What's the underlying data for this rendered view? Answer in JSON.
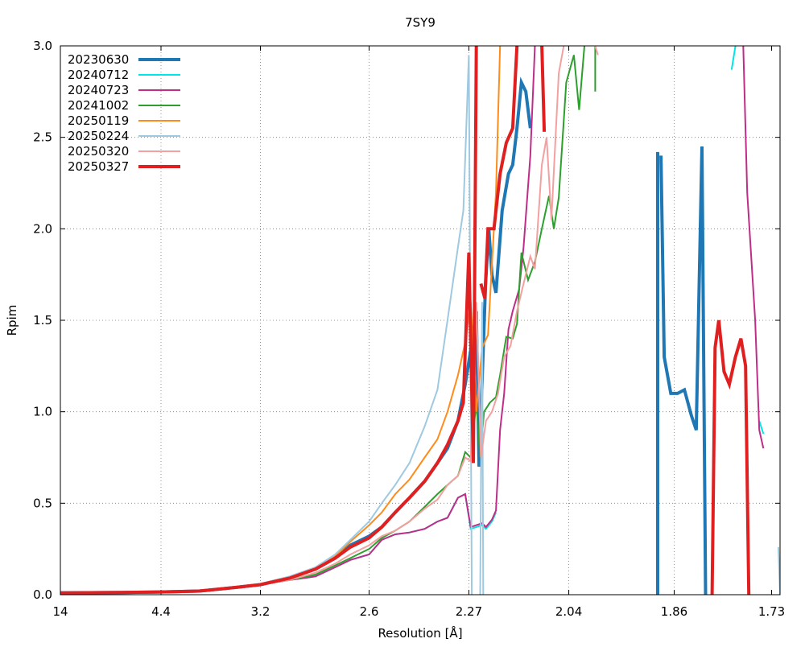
{
  "chart_data": {
    "type": "line",
    "title": "7SY9",
    "xlabel": "Resolution [Å]",
    "ylabel": "Rpim",
    "x_scale": "1/d^2",
    "xlim": [
      14,
      1.72
    ],
    "ylim": [
      0,
      3.0
    ],
    "grid": true,
    "legend_position": "top-left",
    "x_ticks": [
      {
        "value": 14,
        "label": "14"
      },
      {
        "value": 4.4,
        "label": "4.4"
      },
      {
        "value": 3.2,
        "label": "3.2"
      },
      {
        "value": 2.6,
        "label": "2.6"
      },
      {
        "value": 2.27,
        "label": "2.27"
      },
      {
        "value": 2.04,
        "label": "2.04"
      },
      {
        "value": 1.86,
        "label": "1.86"
      },
      {
        "value": 1.73,
        "label": "1.73"
      }
    ],
    "y_ticks": [
      {
        "value": 0,
        "label": "0.0"
      },
      {
        "value": 0.5,
        "label": "0.5"
      },
      {
        "value": 1.0,
        "label": "1.0"
      },
      {
        "value": 1.5,
        "label": "1.5"
      },
      {
        "value": 2.0,
        "label": "2.0"
      },
      {
        "value": 2.5,
        "label": "2.5"
      },
      {
        "value": 3.0,
        "label": "3.0"
      }
    ],
    "series": [
      {
        "name": "20230630",
        "color": "#1f77b4",
        "width": 4,
        "points": [
          [
            14,
            0.01
          ],
          [
            5.5,
            0.012
          ],
          [
            4.4,
            0.015
          ],
          [
            3.8,
            0.02
          ],
          [
            3.4,
            0.04
          ],
          [
            3.2,
            0.055
          ],
          [
            3.0,
            0.09
          ],
          [
            2.85,
            0.14
          ],
          [
            2.75,
            0.2
          ],
          [
            2.68,
            0.27
          ],
          [
            2.6,
            0.32
          ],
          [
            2.55,
            0.37
          ],
          [
            2.5,
            0.45
          ],
          [
            2.45,
            0.53
          ],
          [
            2.4,
            0.62
          ],
          [
            2.36,
            0.72
          ],
          [
            2.33,
            0.8
          ],
          [
            2.3,
            0.95
          ],
          [
            2.28,
            1.15
          ],
          [
            2.26,
            1.4
          ],
          [
            2.25,
            1.55
          ],
          [
            2.243,
            0.7
          ],
          [
            2.235,
            1.17
          ],
          [
            2.226,
            1.7
          ],
          [
            2.218,
            2.0
          ],
          [
            2.21,
            1.75
          ],
          [
            2.2,
            1.65
          ],
          [
            2.185,
            2.1
          ],
          [
            2.17,
            2.3
          ],
          [
            2.16,
            2.35
          ],
          [
            2.15,
            2.55
          ],
          [
            2.14,
            2.8
          ],
          [
            2.13,
            2.75
          ],
          [
            2.12,
            2.55
          ],
          [
            2.12,
            null
          ],
          [
            1.885,
            2.42
          ],
          [
            1.885,
            0.0
          ],
          [
            1.885,
            null
          ],
          [
            1.88,
            2.4
          ],
          [
            1.875,
            1.3
          ],
          [
            1.865,
            1.1
          ],
          [
            1.855,
            1.1
          ],
          [
            1.845,
            1.12
          ],
          [
            1.835,
            0.98
          ],
          [
            1.828,
            0.9
          ],
          [
            1.82,
            2.45
          ],
          [
            1.815,
            0.0
          ]
        ]
      },
      {
        "name": "20240712",
        "color": "#00e5e5",
        "width": 2,
        "points": [
          [
            14,
            0.01
          ],
          [
            5.5,
            0.012
          ],
          [
            4.4,
            0.015
          ],
          [
            3.8,
            0.02
          ],
          [
            3.4,
            0.04
          ],
          [
            3.2,
            0.055
          ],
          [
            3.0,
            0.08
          ],
          [
            2.85,
            0.1
          ],
          [
            2.75,
            0.15
          ],
          [
            2.68,
            0.19
          ],
          [
            2.6,
            0.22
          ],
          [
            2.55,
            0.3
          ],
          [
            2.5,
            0.33
          ],
          [
            2.45,
            0.34
          ],
          [
            2.4,
            0.36
          ],
          [
            2.36,
            0.4
          ],
          [
            2.33,
            0.42
          ],
          [
            2.3,
            0.53
          ],
          [
            2.28,
            0.55
          ],
          [
            2.265,
            0.36
          ],
          [
            2.25,
            0.37
          ],
          [
            2.235,
            0.38
          ],
          [
            2.225,
            0.36
          ],
          [
            2.21,
            0.4
          ],
          [
            2.2,
            0.45
          ],
          [
            2.2,
            null
          ],
          [
            1.78,
            2.87
          ],
          [
            1.775,
            3.0
          ],
          [
            1.775,
            null
          ],
          [
            1.745,
            0.95
          ],
          [
            1.74,
            0.88
          ]
        ]
      },
      {
        "name": "20240723",
        "color": "#c02d88",
        "width": 2,
        "points": [
          [
            14,
            0.01
          ],
          [
            5.5,
            0.012
          ],
          [
            4.4,
            0.015
          ],
          [
            3.8,
            0.02
          ],
          [
            3.4,
            0.04
          ],
          [
            3.2,
            0.055
          ],
          [
            3.0,
            0.08
          ],
          [
            2.85,
            0.1
          ],
          [
            2.75,
            0.15
          ],
          [
            2.68,
            0.19
          ],
          [
            2.6,
            0.22
          ],
          [
            2.55,
            0.3
          ],
          [
            2.5,
            0.33
          ],
          [
            2.45,
            0.34
          ],
          [
            2.4,
            0.36
          ],
          [
            2.36,
            0.4
          ],
          [
            2.33,
            0.42
          ],
          [
            2.3,
            0.53
          ],
          [
            2.28,
            0.55
          ],
          [
            2.265,
            0.37
          ],
          [
            2.25,
            0.38
          ],
          [
            2.235,
            0.39
          ],
          [
            2.225,
            0.37
          ],
          [
            2.21,
            0.41
          ],
          [
            2.2,
            0.46
          ],
          [
            2.19,
            0.9
          ],
          [
            2.18,
            1.1
          ],
          [
            2.17,
            1.45
          ],
          [
            2.16,
            1.55
          ],
          [
            2.145,
            1.67
          ],
          [
            2.135,
            1.9
          ],
          [
            2.12,
            2.4
          ],
          [
            2.11,
            3.0
          ],
          [
            2.11,
            null
          ],
          [
            1.765,
            3.0
          ],
          [
            1.76,
            2.2
          ],
          [
            1.75,
            1.5
          ],
          [
            1.745,
            0.9
          ],
          [
            1.74,
            0.8
          ]
        ]
      },
      {
        "name": "20241002",
        "color": "#2ca02c",
        "width": 2,
        "points": [
          [
            14,
            0.01
          ],
          [
            5.5,
            0.012
          ],
          [
            4.4,
            0.015
          ],
          [
            3.8,
            0.02
          ],
          [
            3.4,
            0.04
          ],
          [
            3.2,
            0.055
          ],
          [
            3.0,
            0.08
          ],
          [
            2.85,
            0.11
          ],
          [
            2.75,
            0.16
          ],
          [
            2.68,
            0.2
          ],
          [
            2.6,
            0.25
          ],
          [
            2.55,
            0.31
          ],
          [
            2.5,
            0.35
          ],
          [
            2.45,
            0.4
          ],
          [
            2.4,
            0.48
          ],
          [
            2.36,
            0.55
          ],
          [
            2.33,
            0.6
          ],
          [
            2.3,
            0.65
          ],
          [
            2.28,
            0.78
          ],
          [
            2.265,
            0.75
          ],
          [
            2.25,
            1.05
          ],
          [
            2.24,
            0.75
          ],
          [
            2.23,
            1.0
          ],
          [
            2.215,
            1.05
          ],
          [
            2.2,
            1.08
          ],
          [
            2.19,
            1.2
          ],
          [
            2.175,
            1.41
          ],
          [
            2.16,
            1.4
          ],
          [
            2.15,
            1.48
          ],
          [
            2.14,
            1.87
          ],
          [
            2.125,
            1.72
          ],
          [
            2.11,
            1.82
          ],
          [
            2.095,
            2.0
          ],
          [
            2.08,
            2.18
          ],
          [
            2.07,
            2.0
          ],
          [
            2.06,
            2.17
          ],
          [
            2.045,
            2.8
          ],
          [
            2.03,
            2.95
          ],
          [
            2.02,
            2.65
          ],
          [
            2.01,
            3.0
          ],
          [
            2.01,
            null
          ],
          [
            1.99,
            3.0
          ],
          [
            1.99,
            2.75
          ]
        ]
      },
      {
        "name": "20250119",
        "color": "#ff8c1a",
        "width": 2,
        "points": [
          [
            14,
            0.01
          ],
          [
            5.5,
            0.012
          ],
          [
            4.4,
            0.015
          ],
          [
            3.8,
            0.02
          ],
          [
            3.4,
            0.04
          ],
          [
            3.2,
            0.055
          ],
          [
            3.0,
            0.09
          ],
          [
            2.85,
            0.14
          ],
          [
            2.75,
            0.21
          ],
          [
            2.68,
            0.29
          ],
          [
            2.6,
            0.38
          ],
          [
            2.55,
            0.45
          ],
          [
            2.5,
            0.55
          ],
          [
            2.45,
            0.63
          ],
          [
            2.4,
            0.75
          ],
          [
            2.36,
            0.85
          ],
          [
            2.33,
            1.0
          ],
          [
            2.3,
            1.2
          ],
          [
            2.28,
            1.38
          ],
          [
            2.265,
            1.6
          ],
          [
            2.25,
            1.0
          ],
          [
            2.235,
            1.35
          ],
          [
            2.22,
            1.42
          ],
          [
            2.2,
            2.2
          ],
          [
            2.19,
            3.0
          ]
        ]
      },
      {
        "name": "20250224",
        "color": "#9ec9e0",
        "width": 2,
        "points": [
          [
            14,
            0.01
          ],
          [
            5.5,
            0.012
          ],
          [
            4.4,
            0.015
          ],
          [
            3.8,
            0.02
          ],
          [
            3.4,
            0.04
          ],
          [
            3.2,
            0.06
          ],
          [
            3.0,
            0.1
          ],
          [
            2.85,
            0.15
          ],
          [
            2.75,
            0.22
          ],
          [
            2.68,
            0.3
          ],
          [
            2.6,
            0.4
          ],
          [
            2.55,
            0.5
          ],
          [
            2.5,
            0.6
          ],
          [
            2.45,
            0.72
          ],
          [
            2.4,
            0.92
          ],
          [
            2.36,
            1.12
          ],
          [
            2.33,
            1.5
          ],
          [
            2.3,
            1.9
          ],
          [
            2.285,
            2.1
          ],
          [
            2.27,
            2.95
          ],
          [
            2.262,
            0.0
          ],
          [
            2.262,
            null
          ],
          [
            2.24,
            0.0
          ],
          [
            2.235,
            1.6
          ],
          [
            2.232,
            0.0
          ],
          [
            2.232,
            null
          ],
          [
            1.722,
            0.26
          ],
          [
            1.72,
            0.0
          ]
        ]
      },
      {
        "name": "20250320",
        "color": "#f4a0a0",
        "width": 2,
        "points": [
          [
            14,
            0.01
          ],
          [
            5.5,
            0.012
          ],
          [
            4.4,
            0.015
          ],
          [
            3.8,
            0.02
          ],
          [
            3.4,
            0.04
          ],
          [
            3.2,
            0.055
          ],
          [
            3.0,
            0.08
          ],
          [
            2.85,
            0.12
          ],
          [
            2.75,
            0.17
          ],
          [
            2.68,
            0.22
          ],
          [
            2.6,
            0.27
          ],
          [
            2.55,
            0.32
          ],
          [
            2.5,
            0.35
          ],
          [
            2.45,
            0.4
          ],
          [
            2.4,
            0.47
          ],
          [
            2.36,
            0.52
          ],
          [
            2.33,
            0.6
          ],
          [
            2.3,
            0.65
          ],
          [
            2.28,
            0.75
          ],
          [
            2.265,
            0.73
          ],
          [
            2.25,
            1.6
          ],
          [
            2.238,
            0.75
          ],
          [
            2.225,
            0.95
          ],
          [
            2.21,
            1.0
          ],
          [
            2.195,
            1.1
          ],
          [
            2.18,
            1.3
          ],
          [
            2.165,
            1.36
          ],
          [
            2.15,
            1.55
          ],
          [
            2.135,
            1.7
          ],
          [
            2.12,
            1.85
          ],
          [
            2.11,
            1.78
          ],
          [
            2.095,
            2.35
          ],
          [
            2.085,
            2.5
          ],
          [
            2.075,
            2.05
          ],
          [
            2.06,
            2.85
          ],
          [
            2.05,
            3.0
          ],
          [
            2.05,
            null
          ],
          [
            1.99,
            3.0
          ],
          [
            1.985,
            2.95
          ]
        ]
      },
      {
        "name": "20250327",
        "color": "#e02020",
        "width": 4,
        "points": [
          [
            14,
            0.01
          ],
          [
            5.5,
            0.012
          ],
          [
            4.4,
            0.015
          ],
          [
            3.8,
            0.02
          ],
          [
            3.4,
            0.04
          ],
          [
            3.2,
            0.055
          ],
          [
            3.0,
            0.09
          ],
          [
            2.85,
            0.14
          ],
          [
            2.75,
            0.2
          ],
          [
            2.68,
            0.26
          ],
          [
            2.6,
            0.31
          ],
          [
            2.55,
            0.37
          ],
          [
            2.5,
            0.45
          ],
          [
            2.45,
            0.53
          ],
          [
            2.4,
            0.62
          ],
          [
            2.36,
            0.72
          ],
          [
            2.33,
            0.82
          ],
          [
            2.3,
            0.95
          ],
          [
            2.285,
            1.05
          ],
          [
            2.27,
            1.87
          ],
          [
            2.258,
            0.72
          ],
          [
            2.25,
            3.0
          ],
          [
            2.25,
            null
          ],
          [
            2.238,
            1.7
          ],
          [
            2.228,
            1.62
          ],
          [
            2.22,
            2.0
          ],
          [
            2.205,
            2.0
          ],
          [
            2.19,
            2.3
          ],
          [
            2.175,
            2.47
          ],
          [
            2.16,
            2.55
          ],
          [
            2.15,
            3.0
          ],
          [
            2.15,
            null
          ],
          [
            2.095,
            3.0
          ],
          [
            2.09,
            2.53
          ],
          [
            2.09,
            null
          ],
          [
            1.806,
            0.0
          ],
          [
            1.802,
            1.35
          ],
          [
            1.797,
            1.5
          ],
          [
            1.79,
            1.22
          ],
          [
            1.783,
            1.15
          ],
          [
            1.775,
            1.3
          ],
          [
            1.768,
            1.4
          ],
          [
            1.762,
            1.25
          ],
          [
            1.758,
            0.0
          ]
        ]
      }
    ]
  }
}
